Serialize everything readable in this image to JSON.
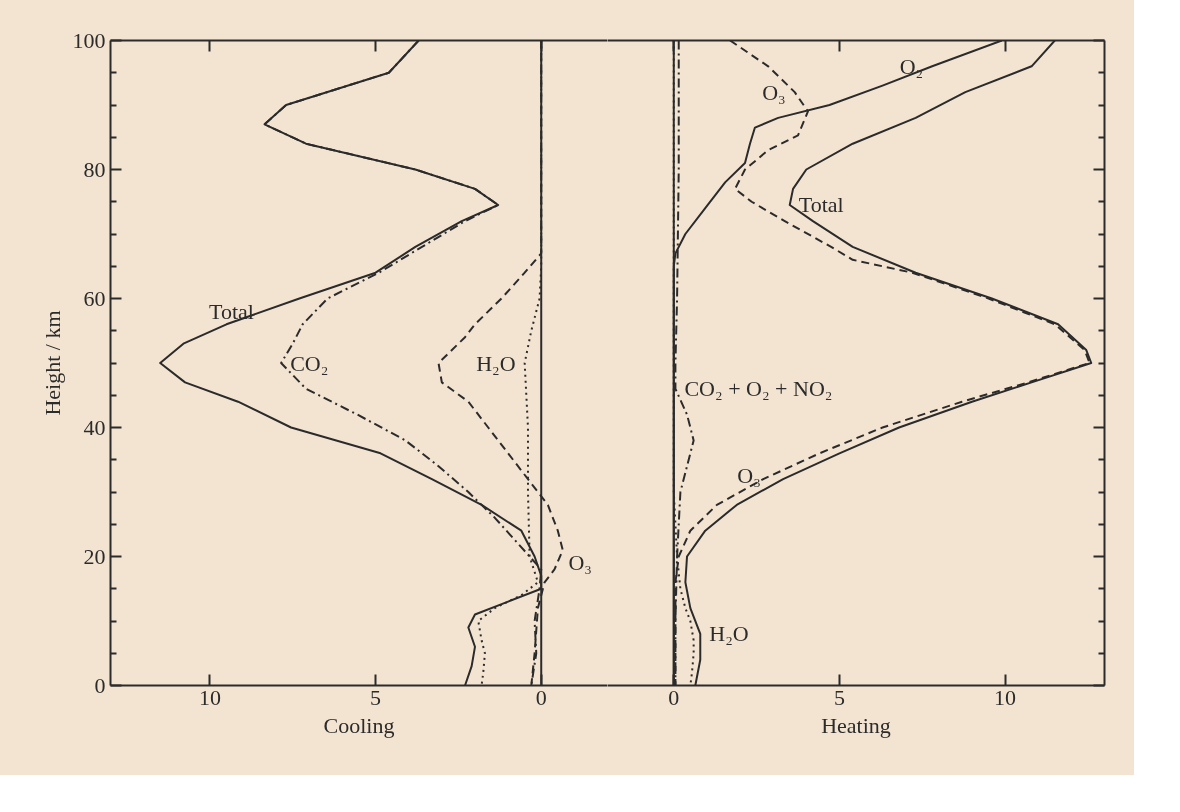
{
  "chart_data": [
    {
      "type": "line",
      "xlabel": "Cooling",
      "ylabel": "Height / km",
      "xlim": [
        13,
        -2
      ],
      "xticks": [
        10,
        5,
        0
      ],
      "ylim": [
        0,
        100
      ],
      "yticks": [
        0,
        {
          "value": 5,
          "label": null
        },
        {
          "value": 10,
          "label": null
        },
        {
          "value": 15,
          "label": null
        },
        20,
        {
          "value": 25,
          "label": null
        },
        {
          "value": 30,
          "label": null
        },
        {
          "value": 35,
          "label": null
        },
        40,
        {
          "value": 45,
          "label": null
        },
        {
          "value": 50,
          "label": null
        },
        {
          "value": 55,
          "label": null
        },
        60,
        {
          "value": 65,
          "label": null
        },
        {
          "value": 70,
          "label": null
        },
        {
          "value": 75,
          "label": null
        },
        80,
        {
          "value": 85,
          "label": null
        },
        {
          "value": 90,
          "label": null
        },
        {
          "value": 95,
          "label": null
        },
        100
      ],
      "grid": false,
      "series": [
        {
          "color": "#2b2b2b",
          "line_style": "solid",
          "x": [
            3.7,
            4.6,
            7.7,
            8.35,
            7.1,
            3.8,
            2.0,
            1.3,
            2.4,
            3.8,
            5.0,
            7.3,
            9.5,
            10.8,
            11.5,
            10.75,
            9.15,
            7.55,
            4.85,
            3.3,
            1.8,
            0.6,
            0.2,
            0,
            0,
            1.0,
            2.0,
            2.2,
            2.0,
            2.1,
            2.3
          ],
          "values": [
            100,
            95,
            90,
            87,
            84,
            80,
            77,
            74.5,
            72,
            68,
            64,
            60,
            56,
            53,
            50,
            47,
            44,
            40,
            36,
            32,
            28,
            24,
            20,
            17,
            15,
            13,
            11,
            9,
            6,
            3,
            0
          ]
        },
        {
          "color": "#2b2b2b",
          "line_style": "dashdot",
          "x": [
            3.7,
            4.6,
            7.7,
            8.35,
            7.1,
            3.8,
            2.0,
            1.3,
            2.3,
            3.6,
            4.9,
            6.45,
            7.2,
            7.5,
            7.85,
            7.1,
            5.55,
            4.1,
            3.1,
            2.2,
            1.4,
            0.7,
            0.0,
            0.05,
            0.2,
            0.15,
            0.3
          ],
          "values": [
            100,
            95,
            90,
            87,
            84,
            80,
            77,
            74.5,
            72,
            68,
            64,
            60,
            56,
            53,
            50,
            46,
            42,
            38,
            34,
            30,
            26,
            22,
            18,
            15,
            10,
            5,
            0
          ]
        },
        {
          "color": "#2b2b2b",
          "line_style": "dotted",
          "x": [
            0,
            0,
            0,
            0.05,
            0.3,
            0.5,
            0.45,
            0.4,
            0.4,
            0.35,
            0.1,
            0.6,
            1.4,
            1.9,
            1.8,
            1.7,
            1.75,
            1.8
          ],
          "values": [
            100,
            80,
            65,
            60,
            55,
            50,
            45,
            40,
            30,
            20,
            16,
            14,
            12,
            10,
            7,
            5,
            2,
            0
          ]
        },
        {
          "color": "#2b2b2b",
          "line_style": "dashed",
          "x": [
            0,
            0,
            0,
            0.5,
            1.2,
            2.0,
            2.3,
            3.1,
            3.0,
            2.2,
            1.6,
            1.0,
            0.4,
            -0.2,
            -0.5,
            -0.65,
            -0.4,
            -0.1,
            0.1,
            0.2,
            0.3
          ],
          "values": [
            100,
            80,
            67,
            64,
            60,
            56,
            54,
            50,
            47,
            44,
            40,
            36,
            32,
            28,
            24,
            21,
            18,
            16,
            12,
            5,
            0
          ]
        }
      ],
      "ref_lines": [
        {
          "axis": "x",
          "value": 0,
          "color": "#2b2b2b"
        }
      ],
      "annotations": [
        {
          "text": "Total",
          "x": 8.4,
          "y": 58
        },
        {
          "text": "CO₂",
          "x": 7.85,
          "y": 50
        },
        {
          "text": "H₂O",
          "x": 0.5,
          "y": 50
        },
        {
          "text": "O₃",
          "x": -0.55,
          "y": 19
        }
      ]
    },
    {
      "type": "line",
      "xlabel": "Heating",
      "xlim": [
        -2,
        13
      ],
      "xticks": [
        0,
        5,
        10
      ],
      "ylim": [
        0,
        100
      ],
      "tick_labels": "x",
      "yticks": [
        0,
        {
          "value": 5,
          "label": null
        },
        {
          "value": 10,
          "label": null
        },
        {
          "value": 15,
          "label": null
        },
        20,
        {
          "value": 25,
          "label": null
        },
        {
          "value": 30,
          "label": null
        },
        {
          "value": 35,
          "label": null
        },
        40,
        {
          "value": 45,
          "label": null
        },
        {
          "value": 50,
          "label": null
        },
        {
          "value": 55,
          "label": null
        },
        60,
        {
          "value": 65,
          "label": null
        },
        {
          "value": 70,
          "label": null
        },
        {
          "value": 75,
          "label": null
        },
        80,
        {
          "value": 85,
          "label": null
        },
        {
          "value": 90,
          "label": null
        },
        {
          "value": 95,
          "label": null
        },
        100
      ],
      "grid": false,
      "series": [
        {
          "color": "#2b2b2b",
          "line_style": "solid",
          "x": [
            11.5,
            10.8,
            8.8,
            7.3,
            5.4,
            4.0,
            3.6,
            3.5,
            4.2,
            5.4,
            7.3,
            9.6,
            11.6,
            12.45,
            12.6,
            10.8,
            9.0,
            6.8,
            5.0,
            3.3,
            1.9,
            0.95,
            0.4,
            0.35,
            0.5,
            0.8,
            0.8,
            0.65
          ],
          "values": [
            100,
            96,
            92,
            88,
            84,
            80,
            77,
            74.5,
            72,
            68,
            64,
            60,
            56,
            52,
            50,
            47,
            44,
            40,
            36,
            32,
            28,
            24,
            20,
            16,
            12,
            8,
            4,
            0
          ]
        },
        {
          "color": "#2b2b2b",
          "line_style": "dashed",
          "x": [
            1.7,
            2.85,
            3.65,
            4.05,
            3.75,
            2.85,
            2.15,
            1.85,
            2.35,
            3.35,
            4.75,
            5.4,
            7.2,
            9.5,
            11.5,
            12.4,
            12.55,
            10.7,
            8.7,
            6.3,
            4.4,
            2.7,
            1.3,
            0.5,
            0.15,
            0.05,
            0.05,
            0.05
          ],
          "values": [
            100,
            96,
            92,
            89,
            85.3,
            83,
            80,
            77,
            75,
            72,
            68,
            66,
            64,
            60,
            56,
            52,
            50,
            47,
            44,
            40,
            36,
            32,
            28,
            24,
            20,
            16,
            10,
            0
          ]
        },
        {
          "color": "#2b2b2b",
          "line_style": "solid",
          "x": [
            9.9,
            7.8,
            6.3,
            4.7,
            3.15,
            2.45,
            2.3,
            2.15,
            1.55,
            0.95,
            0.35,
            0.05,
            0,
            0
          ],
          "values": [
            100,
            96,
            93,
            90,
            88,
            86.5,
            84,
            81,
            78,
            74,
            70,
            67,
            65,
            0
          ]
        },
        {
          "color": "#2b2b2b",
          "line_style": "dashdot",
          "x": [
            0.15,
            0.15,
            0.1,
            0.05,
            0.05,
            0.4,
            0.6,
            0.4,
            0.2,
            0.1,
            0.05,
            0.05
          ],
          "values": [
            100,
            80,
            60,
            50,
            46,
            42,
            38,
            34,
            30,
            20,
            10,
            0
          ]
        },
        {
          "color": "#2b2b2b",
          "line_style": "dotted",
          "x": [
            0,
            0,
            0.1,
            0.2,
            0.35,
            0.5,
            0.6,
            0.6,
            0.55,
            0.5
          ],
          "values": [
            100,
            30,
            20,
            15,
            12,
            10,
            7,
            5,
            2,
            0
          ]
        }
      ],
      "ref_lines": [
        {
          "axis": "x",
          "value": 0,
          "color": "#2b2b2b"
        }
      ],
      "annotations": [
        {
          "text": "O₃",
          "x": 3.65,
          "y": 92
        },
        {
          "text": "O₂",
          "x": 7.8,
          "y": 96
        },
        {
          "text": "Total",
          "x": 3.5,
          "y": 74.5
        },
        {
          "text": "CO₂ + O₂ + NO₂",
          "x": 0.05,
          "y": 46
        },
        {
          "text": "O₃",
          "x": 2.9,
          "y": 32.5
        },
        {
          "text": "H₂O",
          "x": 0.8,
          "y": 8
        }
      ]
    }
  ]
}
